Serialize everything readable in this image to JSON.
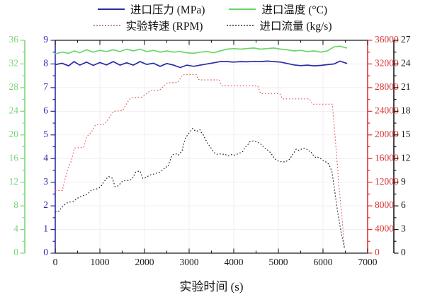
{
  "legend": {
    "items": [
      {
        "label": "进口压力 (MPa)",
        "color": "#2b2ba6",
        "style": "solid"
      },
      {
        "label": "进口温度 (°C)",
        "color": "#69d669",
        "style": "solid"
      },
      {
        "label": "实验转速 (RPM)",
        "color": "#c98a8a",
        "style": "dotted"
      },
      {
        "label": "进口流量 (kg/s)",
        "color": "#666666",
        "style": "dotted"
      }
    ]
  },
  "chart_data": {
    "type": "line",
    "title": "",
    "xlabel": "实验时间 (s)",
    "grid": true,
    "legend_position": "top",
    "x_axis": {
      "min": 0,
      "max": 7000,
      "major_step": 1000,
      "minor_step": 500,
      "ticks": [
        0,
        1000,
        2000,
        3000,
        4000,
        5000,
        6000,
        7000
      ]
    },
    "y_axes": {
      "pressure": {
        "label": "进口压力 (MPa)",
        "color": "#2b2ba6",
        "min": 0,
        "max": 9,
        "major_step": 1,
        "minor_step": 0.5,
        "position": "left-inner",
        "ticks": [
          0,
          1,
          2,
          3,
          4,
          5,
          6,
          7,
          8,
          9
        ]
      },
      "temperature": {
        "label": "进口温度 (°C)",
        "color": "#7cd47c",
        "min": 0,
        "max": 36,
        "major_step": 4,
        "minor_step": 2,
        "position": "left-outer",
        "ticks": [
          0,
          4,
          8,
          12,
          16,
          20,
          24,
          28,
          32,
          36
        ]
      },
      "rpm": {
        "label": "实验转速 (RPM)",
        "color": "#de3333",
        "min": 0,
        "max": 36000,
        "major_step": 4000,
        "minor_step": 2000,
        "position": "right-inner",
        "ticks": [
          0,
          4000,
          8000,
          12000,
          16000,
          20000,
          24000,
          28000,
          32000,
          36000
        ]
      },
      "flow": {
        "label": "进口流量 (kg/s)",
        "color": "#1a1a1a",
        "min": 0,
        "max": 27,
        "major_step": 3,
        "minor_step": 1.5,
        "position": "right-outer",
        "ticks": [
          0,
          3,
          6,
          9,
          12,
          15,
          18,
          21,
          24,
          27
        ]
      }
    },
    "series": [
      {
        "name": "进口压力",
        "axis": "pressure",
        "color": "#2b2ba6",
        "line": "solid",
        "noisy": false,
        "points": [
          [
            0,
            7.97
          ],
          [
            150,
            8.03
          ],
          [
            300,
            7.92
          ],
          [
            420,
            8.1
          ],
          [
            550,
            7.95
          ],
          [
            700,
            8.08
          ],
          [
            850,
            7.94
          ],
          [
            1000,
            8.06
          ],
          [
            1150,
            7.96
          ],
          [
            1300,
            8.1
          ],
          [
            1450,
            7.95
          ],
          [
            1600,
            8.05
          ],
          [
            1750,
            7.95
          ],
          [
            1900,
            8.1
          ],
          [
            2050,
            7.98
          ],
          [
            2200,
            8.03
          ],
          [
            2350,
            7.9
          ],
          [
            2500,
            8.02
          ],
          [
            2650,
            7.95
          ],
          [
            2800,
            7.85
          ],
          [
            2950,
            7.95
          ],
          [
            3100,
            7.9
          ],
          [
            3250,
            7.95
          ],
          [
            3400,
            8.0
          ],
          [
            3550,
            8.05
          ],
          [
            3700,
            8.1
          ],
          [
            3850,
            8.1
          ],
          [
            4000,
            8.08
          ],
          [
            4150,
            8.1
          ],
          [
            4300,
            8.09
          ],
          [
            4450,
            8.11
          ],
          [
            4600,
            8.1
          ],
          [
            4750,
            8.12
          ],
          [
            4900,
            8.1
          ],
          [
            5050,
            8.08
          ],
          [
            5200,
            8.02
          ],
          [
            5350,
            7.96
          ],
          [
            5500,
            7.93
          ],
          [
            5650,
            7.95
          ],
          [
            5800,
            7.92
          ],
          [
            5950,
            7.94
          ],
          [
            6100,
            7.97
          ],
          [
            6250,
            8.0
          ],
          [
            6380,
            8.12
          ],
          [
            6540,
            8.02
          ]
        ]
      },
      {
        "name": "进口温度",
        "axis": "temperature",
        "color": "#69d669",
        "line": "solid",
        "noisy": false,
        "points": [
          [
            0,
            33.7
          ],
          [
            150,
            34.0
          ],
          [
            300,
            33.8
          ],
          [
            420,
            34.2
          ],
          [
            550,
            33.9
          ],
          [
            700,
            34.4
          ],
          [
            850,
            34.0
          ],
          [
            1000,
            34.3
          ],
          [
            1150,
            34.1
          ],
          [
            1300,
            34.4
          ],
          [
            1450,
            34.1
          ],
          [
            1600,
            34.5
          ],
          [
            1750,
            34.2
          ],
          [
            1900,
            34.5
          ],
          [
            2050,
            34.1
          ],
          [
            2200,
            34.3
          ],
          [
            2350,
            34.0
          ],
          [
            2500,
            34.2
          ],
          [
            2650,
            34.0
          ],
          [
            2800,
            34.1
          ],
          [
            2950,
            33.9
          ],
          [
            3100,
            33.8
          ],
          [
            3250,
            34.0
          ],
          [
            3400,
            34.1
          ],
          [
            3550,
            33.9
          ],
          [
            3700,
            34.2
          ],
          [
            3850,
            34.5
          ],
          [
            4000,
            34.6
          ],
          [
            4150,
            34.5
          ],
          [
            4300,
            34.6
          ],
          [
            4450,
            34.7
          ],
          [
            4600,
            34.5
          ],
          [
            4750,
            34.6
          ],
          [
            4900,
            34.7
          ],
          [
            5050,
            34.5
          ],
          [
            5200,
            34.4
          ],
          [
            5350,
            34.2
          ],
          [
            5500,
            34.3
          ],
          [
            5650,
            34.1
          ],
          [
            5800,
            34.2
          ],
          [
            5950,
            34.0
          ],
          [
            6100,
            34.2
          ],
          [
            6250,
            34.9
          ],
          [
            6380,
            35.0
          ],
          [
            6540,
            34.7
          ]
        ]
      },
      {
        "name": "实验转速",
        "axis": "rpm",
        "color": "#e05c5c",
        "line": "dotted",
        "noisy": false,
        "points": [
          [
            0,
            10600
          ],
          [
            160,
            10600
          ],
          [
            210,
            12300
          ],
          [
            260,
            13600
          ],
          [
            310,
            14800
          ],
          [
            360,
            15600
          ],
          [
            430,
            17800
          ],
          [
            640,
            17900
          ],
          [
            700,
            19600
          ],
          [
            830,
            20700
          ],
          [
            900,
            21700
          ],
          [
            1110,
            21800
          ],
          [
            1200,
            22800
          ],
          [
            1260,
            23500
          ],
          [
            1310,
            24000
          ],
          [
            1510,
            24100
          ],
          [
            1600,
            25300
          ],
          [
            1670,
            26100
          ],
          [
            1720,
            26300
          ],
          [
            1940,
            26400
          ],
          [
            2030,
            26900
          ],
          [
            2100,
            27300
          ],
          [
            2150,
            27500
          ],
          [
            2330,
            27500
          ],
          [
            2420,
            28200
          ],
          [
            2490,
            28700
          ],
          [
            2540,
            28800
          ],
          [
            2750,
            28900
          ],
          [
            2840,
            30100
          ],
          [
            2900,
            30200
          ],
          [
            3160,
            30200
          ],
          [
            3200,
            29400
          ],
          [
            3250,
            29300
          ],
          [
            3680,
            29300
          ],
          [
            3730,
            28300
          ],
          [
            4540,
            28300
          ],
          [
            4600,
            27000
          ],
          [
            5030,
            27000
          ],
          [
            5090,
            26100
          ],
          [
            5700,
            26100
          ],
          [
            5760,
            25200
          ],
          [
            6210,
            25200
          ],
          [
            6280,
            19000
          ],
          [
            6360,
            11000
          ],
          [
            6420,
            6500
          ],
          [
            6480,
            900
          ]
        ]
      },
      {
        "name": "进口流量",
        "axis": "flow",
        "color": "#1a1a1a",
        "line": "dotted",
        "noisy": true,
        "points": [
          [
            0,
            5.2
          ],
          [
            80,
            5.3
          ],
          [
            160,
            5.9
          ],
          [
            240,
            6.3
          ],
          [
            320,
            6.5
          ],
          [
            400,
            6.5
          ],
          [
            480,
            6.9
          ],
          [
            560,
            7.2
          ],
          [
            640,
            7.3
          ],
          [
            720,
            7.5
          ],
          [
            800,
            7.9
          ],
          [
            880,
            8.1
          ],
          [
            960,
            8.2
          ],
          [
            1040,
            8.6
          ],
          [
            1120,
            9.3
          ],
          [
            1200,
            9.7
          ],
          [
            1280,
            9.5
          ],
          [
            1340,
            8.4
          ],
          [
            1420,
            8.6
          ],
          [
            1500,
            9.1
          ],
          [
            1580,
            9.2
          ],
          [
            1660,
            9.2
          ],
          [
            1740,
            9.6
          ],
          [
            1800,
            10.3
          ],
          [
            1900,
            10.4
          ],
          [
            1960,
            9.5
          ],
          [
            2040,
            9.6
          ],
          [
            2120,
            9.9
          ],
          [
            2200,
            10.0
          ],
          [
            2280,
            10.2
          ],
          [
            2360,
            10.3
          ],
          [
            2440,
            10.7
          ],
          [
            2520,
            11.0
          ],
          [
            2600,
            12.2
          ],
          [
            2680,
            12.6
          ],
          [
            2760,
            12.5
          ],
          [
            2840,
            13.0
          ],
          [
            2920,
            14.7
          ],
          [
            3000,
            15.2
          ],
          [
            3080,
            15.9
          ],
          [
            3160,
            15.4
          ],
          [
            3240,
            15.6
          ],
          [
            3320,
            15.0
          ],
          [
            3400,
            14.0
          ],
          [
            3480,
            13.4
          ],
          [
            3560,
            12.8
          ],
          [
            3640,
            12.5
          ],
          [
            3720,
            12.6
          ],
          [
            3800,
            12.5
          ],
          [
            3880,
            12.4
          ],
          [
            3960,
            12.6
          ],
          [
            4040,
            12.4
          ],
          [
            4120,
            12.6
          ],
          [
            4200,
            12.8
          ],
          [
            4280,
            13.6
          ],
          [
            4360,
            14.2
          ],
          [
            4440,
            14.3
          ],
          [
            4520,
            14.1
          ],
          [
            4600,
            13.8
          ],
          [
            4680,
            13.4
          ],
          [
            4760,
            13.0
          ],
          [
            4840,
            12.6
          ],
          [
            4920,
            12.0
          ],
          [
            5000,
            11.6
          ],
          [
            5080,
            11.5
          ],
          [
            5160,
            11.6
          ],
          [
            5240,
            11.9
          ],
          [
            5320,
            12.5
          ],
          [
            5400,
            13.2
          ],
          [
            5480,
            13.1
          ],
          [
            5560,
            13.4
          ],
          [
            5640,
            13.1
          ],
          [
            5720,
            12.9
          ],
          [
            5800,
            12.3
          ],
          [
            5880,
            12.1
          ],
          [
            5960,
            11.9
          ],
          [
            6040,
            11.7
          ],
          [
            6120,
            11.3
          ],
          [
            6200,
            10.4
          ],
          [
            6260,
            8.0
          ],
          [
            6320,
            5.5
          ],
          [
            6400,
            2.8
          ],
          [
            6480,
            0.7
          ]
        ]
      }
    ]
  }
}
